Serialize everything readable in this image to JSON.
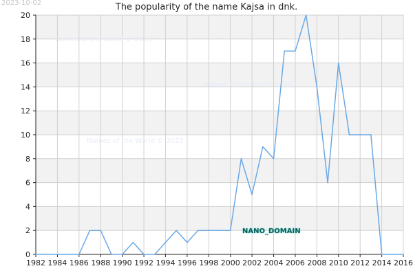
{
  "date_stamp": "2023-10-02",
  "watermark_text": "Names of the World © 2023",
  "overlay_label": "NANO_DOMAIN",
  "chart_data": {
    "type": "line",
    "title": "The popularity of the name Kajsa in dnk.",
    "xlabel": "",
    "ylabel": "",
    "xlim": [
      1982,
      2016
    ],
    "ylim": [
      0,
      20
    ],
    "x_ticks": [
      1982,
      1984,
      1986,
      1988,
      1990,
      1992,
      1994,
      1996,
      1998,
      2000,
      2002,
      2004,
      2006,
      2008,
      2010,
      2012,
      2014,
      2016
    ],
    "y_ticks": [
      0,
      2,
      4,
      6,
      8,
      10,
      12,
      14,
      16,
      18,
      20
    ],
    "grid": true,
    "line_color": "#6aa8e6",
    "band_color": "#f2f2f2",
    "grid_color": "#d0d0d0",
    "series": [
      {
        "x": [
          1982,
          1983,
          1984,
          1985,
          1986,
          1987,
          1988,
          1989,
          1990,
          1991,
          1992,
          1993,
          1994,
          1995,
          1996,
          1997,
          1998,
          1999,
          2000,
          2001,
          2002,
          2003,
          2004,
          2005,
          2006,
          2007,
          2008,
          2009,
          2010,
          2011,
          2012,
          2013,
          2014,
          2015,
          2016
        ],
        "values": [
          0,
          0,
          0,
          0,
          0,
          2,
          2,
          0,
          0,
          1,
          0,
          0,
          1,
          2,
          1,
          2,
          2,
          2,
          2,
          8,
          5,
          9,
          8,
          17,
          17,
          20,
          14,
          6,
          16,
          10,
          10,
          10,
          0,
          0,
          0
        ]
      }
    ]
  }
}
